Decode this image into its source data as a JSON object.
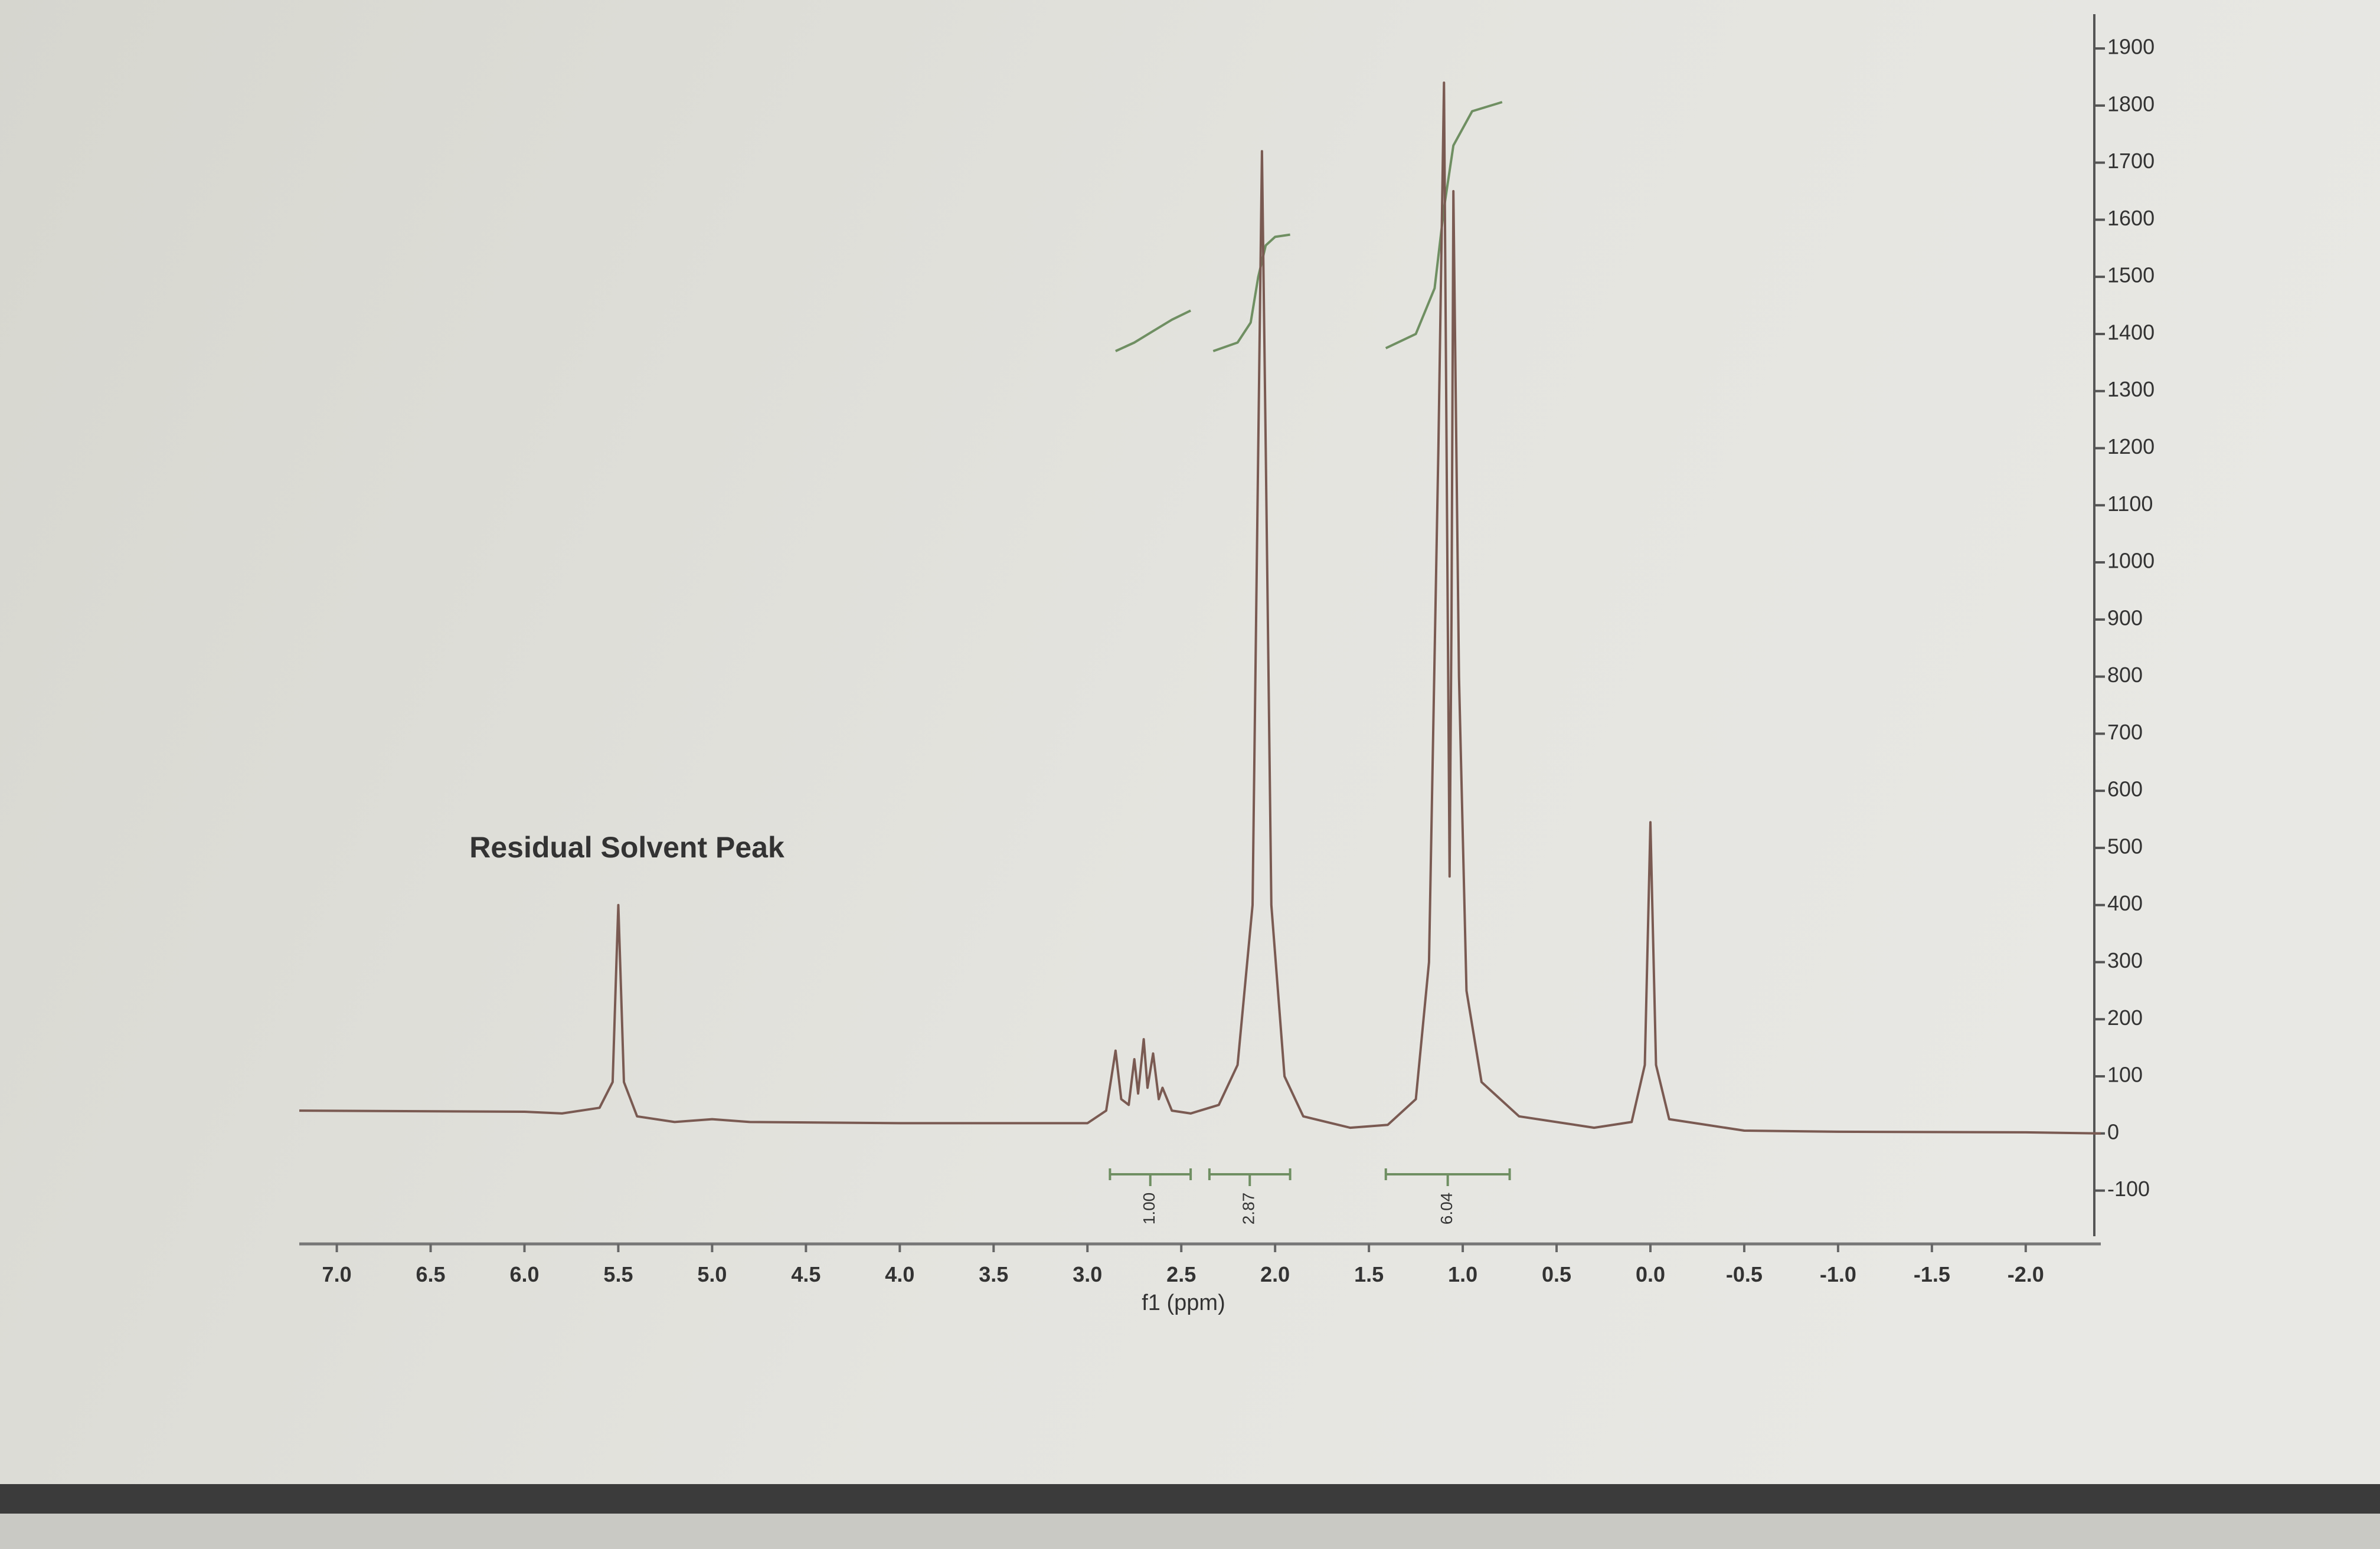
{
  "chart_data": {
    "type": "line",
    "xlabel": "f1 (ppm)",
    "annotation": "Residual Solvent Peak",
    "color": "#7a5a52",
    "x": [
      7.2,
      6.0,
      5.8,
      5.6,
      5.53,
      5.51,
      5.5,
      5.49,
      5.47,
      5.4,
      5.2,
      5.0,
      4.8,
      4.0,
      3.0,
      2.9,
      2.85,
      2.82,
      2.78,
      2.75,
      2.73,
      2.7,
      2.68,
      2.65,
      2.62,
      2.6,
      2.55,
      2.45,
      2.3,
      2.2,
      2.12,
      2.09,
      2.07,
      2.05,
      2.02,
      1.95,
      1.85,
      1.6,
      1.4,
      1.25,
      1.18,
      1.13,
      1.1,
      1.08,
      1.07,
      1.06,
      1.05,
      1.02,
      0.98,
      0.9,
      0.7,
      0.3,
      0.1,
      0.03,
      0.01,
      0.0,
      -0.01,
      -0.03,
      -0.1,
      -0.5,
      -1.0,
      -2.0,
      -2.4
    ],
    "values": [
      40,
      38,
      35,
      45,
      90,
      300,
      400,
      300,
      90,
      30,
      20,
      25,
      20,
      18,
      18,
      40,
      145,
      60,
      50,
      130,
      70,
      165,
      80,
      140,
      60,
      80,
      40,
      35,
      50,
      120,
      400,
      1200,
      1720,
      1200,
      400,
      100,
      30,
      10,
      15,
      60,
      300,
      1200,
      1840,
      900,
      450,
      900,
      1650,
      800,
      250,
      90,
      30,
      10,
      20,
      120,
      400,
      545,
      400,
      120,
      25,
      5,
      3,
      2,
      0
    ],
    "xlim": [
      7.2,
      -2.4
    ],
    "xticks": [
      {
        "value": 7,
        "label": "7.0"
      },
      6.5,
      {
        "value": 6,
        "label": "6.0"
      },
      5.5,
      {
        "value": 5,
        "label": "5.0"
      },
      4.5,
      {
        "value": 4,
        "label": "4.0"
      },
      3.5,
      {
        "value": 3,
        "label": "3.0"
      },
      2.5,
      {
        "value": 2,
        "label": "2.0"
      },
      1.5,
      {
        "value": 1,
        "label": "1.0"
      },
      0.5,
      {
        "value": 0,
        "label": "0.0"
      },
      -0.5,
      {
        "value": -1,
        "label": "-1.0"
      },
      -1.5,
      {
        "value": -2,
        "label": "-2.0"
      }
    ],
    "ylim": [
      -180,
      1960
    ],
    "yticks": [
      -100,
      0,
      100,
      200,
      300,
      400,
      500,
      600,
      700,
      800,
      900,
      1000,
      1100,
      1200,
      1300,
      1400,
      1500,
      1600,
      1700,
      1800,
      1900
    ],
    "integrals": {
      "color": "#6f8f62",
      "ranges": [
        [
          2.88,
          2.45
        ],
        [
          2.35,
          1.92
        ],
        [
          1.41,
          0.75
        ]
      ],
      "values": [
        1,
        2.87,
        6.04
      ],
      "value_labels": [
        "1.00",
        "2.87",
        "6.04"
      ],
      "curves": [
        {
          "x": [
            2.85,
            2.75,
            2.65,
            2.55,
            2.45
          ],
          "values": [
            1370,
            1385,
            1405,
            1425,
            1441
          ]
        },
        {
          "x": [
            2.33,
            2.2,
            2.13,
            2.09,
            2.05,
            2.0,
            1.92
          ],
          "values": [
            1370,
            1385,
            1420,
            1500,
            1555,
            1570,
            1574
          ]
        },
        {
          "x": [
            1.41,
            1.25,
            1.15,
            1.1,
            1.05,
            0.95,
            0.79
          ],
          "values": [
            1375,
            1400,
            1480,
            1620,
            1730,
            1790,
            1806
          ]
        }
      ]
    }
  }
}
